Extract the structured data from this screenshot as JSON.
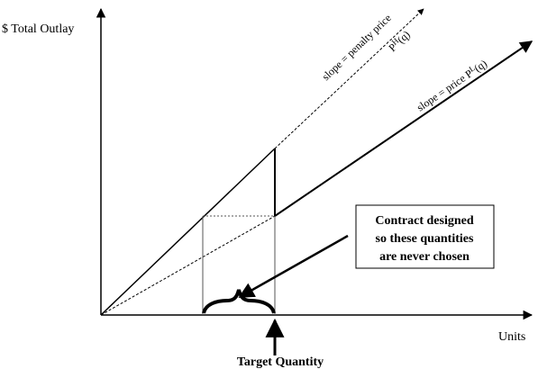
{
  "axis_labels": {
    "y": "$ Total Outlay",
    "x": "Units"
  },
  "annotations": {
    "penalty_slope": "slope = penalty price",
    "penalty_curve": {
      "base": "P",
      "sup": "H",
      "arg": "(q)"
    },
    "price_slope": {
      "base": "slope = price P",
      "sup": "L",
      "arg": "(q)"
    },
    "target": "Target Quantity",
    "box_lines": [
      "Contract designed",
      "so these quantities",
      "are never chosen"
    ]
  }
}
